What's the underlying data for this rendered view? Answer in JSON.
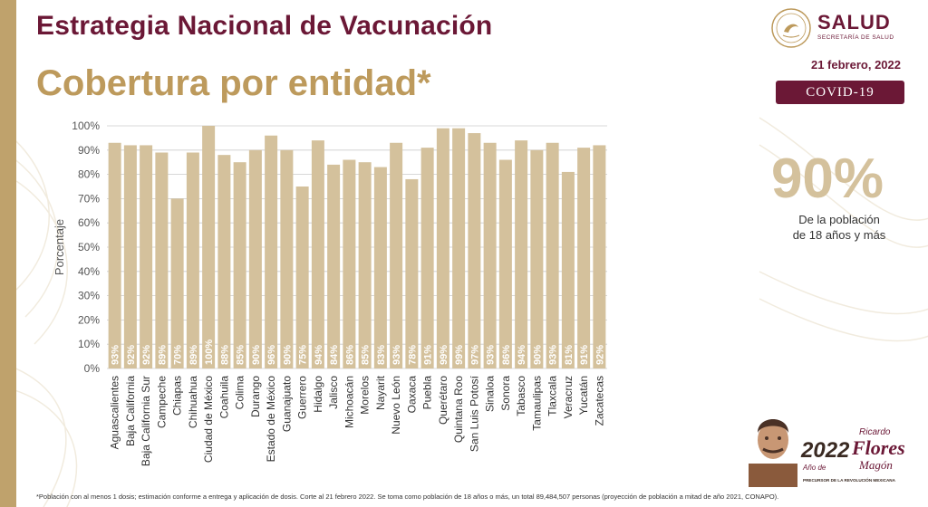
{
  "header": {
    "title": "Estrategia Nacional de Vacunación",
    "subtitle": "Cobertura por entidad*"
  },
  "logo": {
    "text": "SALUD",
    "subtext": "SECRETARÍA DE SALUD",
    "icon": "mexico-seal-icon"
  },
  "date": "21 febrero, 2022",
  "badge": "COVID-19",
  "kpi": {
    "value": "90%",
    "label_line1": "De la población",
    "label_line2": "de 18 años y más"
  },
  "footnote": "*Población con al menos 1 dosis; estimación conforme a entrega y aplicación de dosis. Corte al 21 febrero 2022. Se toma como población de 18 años o más, un total 89,484,507 personas (proyección de población a mitad de año 2021, CONAPO).",
  "commemorative": {
    "year": "2022",
    "year_suffix": "Año de",
    "name_line1": "Ricardo",
    "name_line2": "Flores",
    "name_line3": "Magón",
    "tagline": "PRECURSOR DE LA REVOLUCIÓN MEXICANA",
    "icon": "portrait-illustration-icon"
  },
  "colors": {
    "accent": "#6b1836",
    "gold": "#bd9a5c",
    "bar": "#d4c19c",
    "grid": "#cccccc"
  },
  "chart_data": {
    "type": "bar",
    "ylabel": "Porcentaje",
    "ylim": [
      0,
      100
    ],
    "yticks": [
      "0%",
      "10%",
      "20%",
      "30%",
      "40%",
      "50%",
      "60%",
      "70%",
      "80%",
      "90%",
      "100%"
    ],
    "grid": true,
    "categories": [
      "Aguascalientes",
      "Baja California",
      "Baja California Sur",
      "Campeche",
      "Chiapas",
      "Chihuahua",
      "Ciudad de México",
      "Coahuila",
      "Colima",
      "Durango",
      "Estado de México",
      "Guanajuato",
      "Guerrero",
      "Hidalgo",
      "Jalisco",
      "Michoacán",
      "Morelos",
      "Nayarit",
      "Nuevo León",
      "Oaxaca",
      "Puebla",
      "Querétaro",
      "Quintana Roo",
      "San Luis Potosí",
      "Sinaloa",
      "Sonora",
      "Tabasco",
      "Tamaulipas",
      "Tlaxcala",
      "Veracruz",
      "Yucatán",
      "Zacatecas"
    ],
    "values": [
      93,
      92,
      92,
      89,
      70,
      89,
      100,
      88,
      85,
      90,
      96,
      90,
      75,
      94,
      84,
      86,
      85,
      83,
      93,
      78,
      91,
      99,
      99,
      97,
      93,
      86,
      94,
      90,
      93,
      81,
      91,
      92
    ],
    "value_labels": [
      "93%",
      "92%",
      "92%",
      "89%",
      "70%",
      "89%",
      "100%",
      "88%",
      "85%",
      "90%",
      "96%",
      "90%",
      "75%",
      "94%",
      "84%",
      "86%",
      "85%",
      "83%",
      "93%",
      "78%",
      "91%",
      "99%",
      "99%",
      "97%",
      "93%",
      "86%",
      "94%",
      "90%",
      "93%",
      "81%",
      "91%",
      "92%"
    ]
  }
}
